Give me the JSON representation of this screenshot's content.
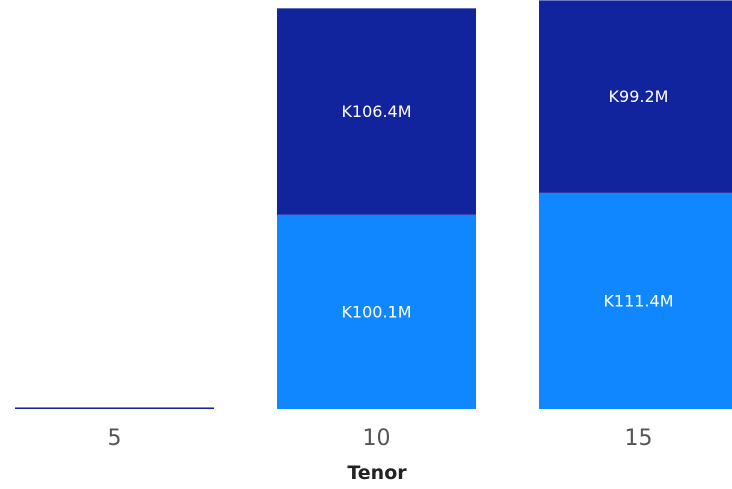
{
  "chart_data": {
    "type": "bar",
    "stacked": true,
    "title": "",
    "xlabel": "Tenor",
    "ylabel": "",
    "categories": [
      "5",
      "10",
      "15"
    ],
    "ylim": [
      0,
      210.8
    ],
    "grid": false,
    "legend": "none",
    "series": [
      {
        "color": "#1187FF",
        "values": [
          0,
          100.1,
          111.4
        ],
        "labels": [
          "",
          "K100.1M",
          "K111.4M"
        ]
      },
      {
        "color": "#12239E",
        "values": [
          0.8,
          106.4,
          99.2
        ],
        "labels": [
          "",
          "K106.4M",
          "K99.2M"
        ]
      }
    ]
  }
}
